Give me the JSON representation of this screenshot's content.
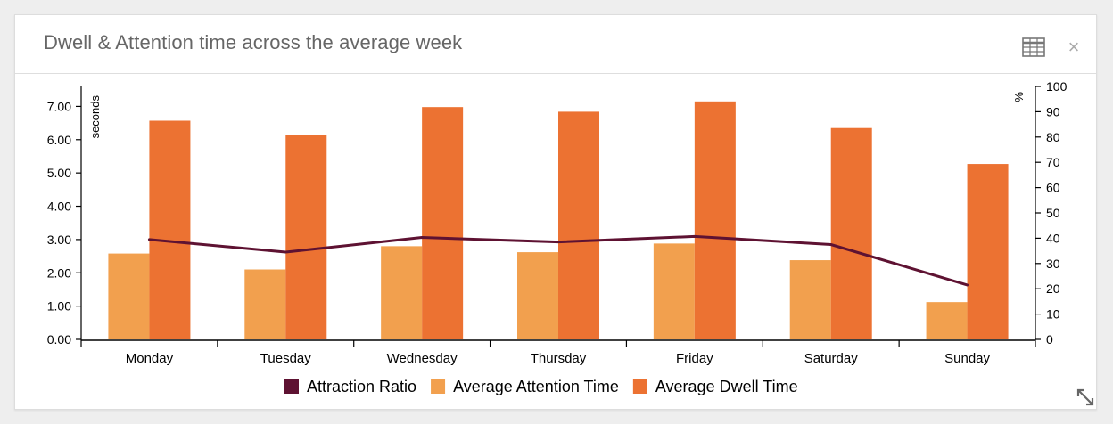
{
  "header": {
    "title": "Dwell & Attention time across the average week",
    "table_icon": "table-icon",
    "close_icon": "close-icon",
    "close_glyph": "×"
  },
  "footer": {
    "resize_icon": "expand-icon"
  },
  "chart_data": {
    "type": "bar",
    "categories": [
      "Monday",
      "Tuesday",
      "Wednesday",
      "Thursday",
      "Friday",
      "Saturday",
      "Sunday"
    ],
    "series": [
      {
        "name": "Average Attention Time",
        "type": "bar",
        "axis": "left",
        "color": "#f2a04e",
        "values": [
          2.58,
          2.1,
          2.8,
          2.62,
          2.88,
          2.38,
          1.12
        ]
      },
      {
        "name": "Average Dwell Time",
        "type": "bar",
        "axis": "left",
        "color": "#ec7232",
        "values": [
          6.57,
          6.13,
          6.98,
          6.84,
          7.15,
          6.35,
          5.27
        ]
      },
      {
        "name": "Attraction Ratio",
        "type": "line",
        "axis": "right",
        "color": "#5e1232",
        "values": [
          39.5,
          34.5,
          40.3,
          38.5,
          40.7,
          37.5,
          21.5
        ]
      }
    ],
    "legend": [
      "Attraction Ratio",
      "Average Attention Time",
      "Average Dwell Time"
    ],
    "legend_position": "bottom-center",
    "ylabel": "seconds",
    "ylabel_right": "%",
    "ylim": [
      0,
      7.6
    ],
    "ylim_right": [
      0,
      100
    ],
    "yticks": [
      "0.00",
      "1.00",
      "2.00",
      "3.00",
      "4.00",
      "5.00",
      "6.00",
      "7.00"
    ],
    "yticks_right": [
      "0",
      "10",
      "20",
      "30",
      "40",
      "50",
      "60",
      "70",
      "80",
      "90",
      "100"
    ],
    "grid": false
  }
}
